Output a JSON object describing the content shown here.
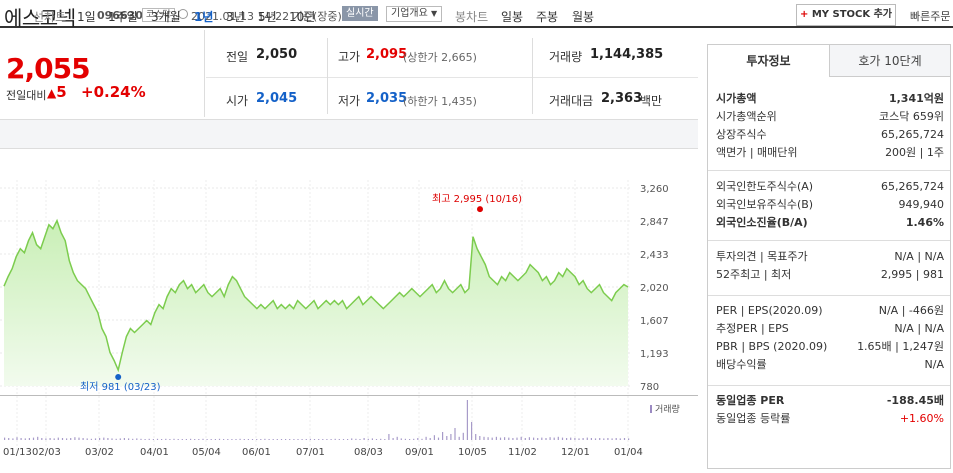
{
  "header": {
    "stock_name": "에스코넥",
    "stock_code": "096630",
    "market": "코스닥",
    "datetime": "2021.01.13 14:22 기준(장중)",
    "realtime_label": "실시간",
    "company_info_label": "기업개요",
    "mystock_label": "MY STOCK 추가",
    "quick_order_label": "빠른주문"
  },
  "price": {
    "current": "2,055",
    "change_label": "전일대비",
    "change_value": "5",
    "change_rate": "+0.24%"
  },
  "stats": {
    "prev_close_label": "전일",
    "prev_close": "2,050",
    "high_label": "고가",
    "high": "2,095",
    "upper_limit": "(상한가 2,665)",
    "volume_label": "거래량",
    "volume": "1,144,385",
    "open_label": "시가",
    "open": "2,045",
    "low_label": "저가",
    "low": "2,035",
    "lower_limit": "(하한가 1,435)",
    "amount_label": "거래대금",
    "amount": "2,363",
    "amount_unit": "백만"
  },
  "period_tabs": {
    "line_group": "선차트",
    "items": [
      "1일",
      "1주일",
      "3개월",
      "1년",
      "3년",
      "5년",
      "10년"
    ],
    "active": "1년",
    "candle_group": "봉차트",
    "candle_items": [
      "일봉",
      "주봉",
      "월봉"
    ]
  },
  "chart_data": {
    "type": "area",
    "y_ticks": [
      "3,260",
      "2,847",
      "2,433",
      "2,020",
      "1,607",
      "1,193",
      "780"
    ],
    "x_ticks": [
      "01/13",
      "02/03",
      "03/02",
      "04/01",
      "05/04",
      "06/01",
      "07/01",
      "08/03",
      "09/01",
      "10/05",
      "11/02",
      "12/01",
      "01/04"
    ],
    "ylim": [
      780,
      3260
    ],
    "high_annotation": "최고 2,995 (10/16)",
    "low_annotation": "최저 981 (03/23)",
    "volume_legend": "거래량",
    "values": [
      2030,
      2150,
      2250,
      2400,
      2500,
      2450,
      2600,
      2700,
      2550,
      2500,
      2650,
      2800,
      2750,
      2850,
      2700,
      2600,
      2350,
      2200,
      2100,
      2050,
      2000,
      1900,
      1800,
      1700,
      1500,
      1400,
      1200,
      1100,
      981,
      1200,
      1400,
      1500,
      1450,
      1500,
      1550,
      1600,
      1550,
      1700,
      1800,
      1750,
      1900,
      2000,
      1950,
      2050,
      2100,
      2000,
      2050,
      1950,
      2000,
      2050,
      1950,
      1900,
      1950,
      2000,
      1900,
      2050,
      2150,
      2100,
      2000,
      1900,
      1850,
      1800,
      1750,
      1800,
      1750,
      1800,
      1850,
      1750,
      1800,
      1750,
      1800,
      1750,
      1850,
      1800,
      1750,
      1800,
      1850,
      1750,
      1800,
      1850,
      1800,
      1850,
      1800,
      1850,
      1750,
      1800,
      1850,
      1900,
      1800,
      1850,
      1900,
      1850,
      1800,
      1750,
      1800,
      1850,
      1900,
      1950,
      1900,
      1950,
      2000,
      1950,
      1900,
      1950,
      2000,
      2050,
      1950,
      2000,
      2100,
      2000,
      1950,
      2000,
      2050,
      1950,
      2000,
      2650,
      2500,
      2400,
      2300,
      2150,
      2100,
      2050,
      2150,
      2100,
      2200,
      2150,
      2100,
      2150,
      2200,
      2300,
      2250,
      2200,
      2100,
      2150,
      2050,
      2100,
      2200,
      2150,
      2250,
      2200,
      2150,
      2050,
      2100,
      2000,
      1950,
      2000,
      2050,
      1950,
      1900,
      1850,
      1950,
      2000,
      2050,
      2020
    ],
    "volume_bars": [
      0.06,
      0.05,
      0.04,
      0.07,
      0.05,
      0.04,
      0.05,
      0.06,
      0.08,
      0.05,
      0.04,
      0.05,
      0.04,
      0.06,
      0.05,
      0.04,
      0.05,
      0.07,
      0.06,
      0.05,
      0.04,
      0.03,
      0.04,
      0.05,
      0.06,
      0.05,
      0.04,
      0.03,
      0.04,
      0.05,
      0.04,
      0.03,
      0.04,
      0.03,
      0.02,
      0.03,
      0.02,
      0.03,
      0.02,
      0.03,
      0.02,
      0.03,
      0.02,
      0.02,
      0.02,
      0.03,
      0.02,
      0.02,
      0.03,
      0.02,
      0.02,
      0.02,
      0.03,
      0.02,
      0.02,
      0.02,
      0.02,
      0.03,
      0.02,
      0.02,
      0.02,
      0.02,
      0.02,
      0.03,
      0.02,
      0.02,
      0.02,
      0.02,
      0.02,
      0.02,
      0.02,
      0.02,
      0.02,
      0.02,
      0.03,
      0.02,
      0.02,
      0.02,
      0.02,
      0.02,
      0.03,
      0.02,
      0.02,
      0.02,
      0.04,
      0.03,
      0.02,
      0.05,
      0.03,
      0.04,
      0.02,
      0.03,
      0.02,
      0.15,
      0.05,
      0.08,
      0.04,
      0.03,
      0.02,
      0.03,
      0.05,
      0.03,
      0.08,
      0.05,
      0.12,
      0.06,
      0.2,
      0.1,
      0.15,
      0.3,
      0.08,
      0.18,
      1.0,
      0.45,
      0.15,
      0.1,
      0.08,
      0.07,
      0.06,
      0.08,
      0.06,
      0.07,
      0.06,
      0.05,
      0.06,
      0.08,
      0.05,
      0.07,
      0.06,
      0.05,
      0.06,
      0.05,
      0.07,
      0.06,
      0.08,
      0.06,
      0.05,
      0.06,
      0.05,
      0.04,
      0.05,
      0.06,
      0.05,
      0.04,
      0.05,
      0.04,
      0.05,
      0.04,
      0.05,
      0.04,
      0.05,
      0.04
    ]
  },
  "right_panel": {
    "tab_invest": "투자정보",
    "tab_quote": "호가 10단계",
    "rows1": [
      {
        "label": "시가총액",
        "value": "1,341억원",
        "bold": true
      },
      {
        "label": "시가총액순위",
        "value": "코스닥 659위"
      },
      {
        "label": "상장주식수",
        "value": "65,265,724"
      },
      {
        "label": "액면가 | 매매단위",
        "value": "200원 | 1주"
      }
    ],
    "rows2": [
      {
        "label": "외국인한도주식수(A)",
        "value": "65,265,724"
      },
      {
        "label": "외국인보유주식수(B)",
        "value": "949,940"
      },
      {
        "label": "외국인소진율(B/A)",
        "value": "1.46%",
        "bold": true
      }
    ],
    "rows3": [
      {
        "label": "투자의견 | 목표주가",
        "value": "N/A | N/A"
      },
      {
        "label": "52주최고 | 최저",
        "value": "2,995 | 981"
      }
    ],
    "rows4": [
      {
        "label": "PER | EPS(2020.09)",
        "value": "N/A | -466원"
      },
      {
        "label": "추정PER | EPS",
        "value": "N/A | N/A"
      },
      {
        "label": "PBR | BPS (2020.09)",
        "value": "1.65배 | 1,247원"
      },
      {
        "label": "배당수익률",
        "value": "N/A"
      }
    ],
    "rows5": [
      {
        "label": "동일업종 PER",
        "value": "-188.45배",
        "bold": true
      },
      {
        "label": "동일업종 등락률",
        "value": "+1.60%",
        "red": true
      }
    ]
  }
}
